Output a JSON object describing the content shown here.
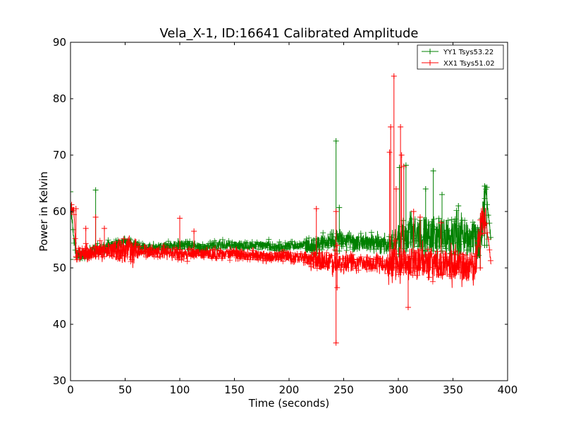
{
  "chart_data": {
    "type": "line",
    "title": "Vela_X-1, ID:16641 Calibrated Amplitude",
    "xlabel": "Time (seconds)",
    "ylabel": "Power in Kelvin",
    "xlim": [
      0,
      400
    ],
    "ylim": [
      30,
      90
    ],
    "xticks": [
      0,
      50,
      100,
      150,
      200,
      250,
      300,
      350,
      400
    ],
    "yticks": [
      30,
      40,
      50,
      60,
      70,
      80,
      90
    ],
    "grid": false,
    "legend_position": "top-right",
    "series": [
      {
        "name": "YY1 Tsys53.22",
        "color": "#008000",
        "x": [
          0,
          5,
          10,
          20,
          30,
          40,
          50,
          60,
          70,
          80,
          90,
          100,
          110,
          120,
          130,
          140,
          150,
          160,
          170,
          180,
          190,
          200,
          210,
          220,
          230,
          240,
          250,
          260,
          270,
          280,
          290,
          300,
          310,
          320,
          330,
          340,
          350,
          360,
          370,
          375,
          380,
          385
        ],
        "values": [
          61,
          52,
          52,
          53,
          53.5,
          54,
          54.5,
          54,
          53.5,
          53.5,
          54,
          54,
          54,
          53.5,
          54,
          54,
          54,
          54,
          54,
          54,
          53.5,
          54,
          54,
          54,
          54.5,
          55,
          55,
          54.5,
          54.5,
          54.5,
          54,
          55,
          56,
          56,
          56,
          55.5,
          55.5,
          55.5,
          55,
          54.5,
          64,
          54.5
        ],
        "spikes": [
          {
            "x": 0,
            "values": [
              51.5,
              63.5
            ]
          },
          {
            "x": 23,
            "values": [
              52,
              63.8
            ]
          },
          {
            "x": 243,
            "values": [
              53,
              72.5
            ]
          },
          {
            "x": 246,
            "values": [
              53,
              60.7
            ]
          },
          {
            "x": 301,
            "values": [
              53,
              67.8
            ]
          },
          {
            "x": 307,
            "values": [
              53,
              68.2
            ]
          },
          {
            "x": 332,
            "values": [
              53,
              67.2
            ]
          },
          {
            "x": 325,
            "values": [
              53,
              64
            ]
          },
          {
            "x": 340,
            "values": [
              53,
              63
            ]
          },
          {
            "x": 355,
            "values": [
              53,
              61
            ]
          },
          {
            "x": 379,
            "values": [
              54,
              64.5
            ]
          },
          {
            "x": 381,
            "values": [
              54,
              64.3
            ]
          }
        ],
        "noise": [
          {
            "from": 0,
            "to": 150,
            "amp": 0.8
          },
          {
            "from": 150,
            "to": 215,
            "amp": 0.7
          },
          {
            "from": 215,
            "to": 290,
            "amp": 1.3
          },
          {
            "from": 290,
            "to": 300,
            "amp": 1.5
          },
          {
            "from": 300,
            "to": 380,
            "amp": 3.2
          },
          {
            "from": 380,
            "to": 390,
            "amp": 0.5
          }
        ]
      },
      {
        "name": "XX1 Tsys51.02",
        "color": "#ff0000",
        "x": [
          0,
          3,
          5,
          10,
          20,
          30,
          40,
          50,
          60,
          70,
          80,
          90,
          100,
          110,
          120,
          130,
          140,
          150,
          160,
          170,
          180,
          190,
          200,
          210,
          220,
          230,
          240,
          250,
          260,
          270,
          280,
          290,
          300,
          310,
          320,
          330,
          340,
          350,
          360,
          370,
          375,
          380,
          385
        ],
        "values": [
          60.5,
          60.5,
          52.5,
          52.5,
          52.8,
          53,
          53,
          53,
          53,
          52.8,
          52.8,
          52.5,
          52.5,
          52.5,
          52.5,
          52.5,
          52.5,
          52.5,
          52.3,
          52.2,
          52,
          52,
          52,
          51.8,
          51.5,
          51.2,
          51,
          50.8,
          50.8,
          50.8,
          50.8,
          50.8,
          51,
          51,
          51,
          50.8,
          50.5,
          50.5,
          50.3,
          50.3,
          58,
          58.5,
          50.5
        ],
        "spikes": [
          {
            "x": 1,
            "values": [
              60,
              61.2
            ]
          },
          {
            "x": 5,
            "values": [
              52,
              60.5
            ]
          },
          {
            "x": 14,
            "values": [
              52,
              57
            ]
          },
          {
            "x": 23,
            "values": [
              52,
              59
            ]
          },
          {
            "x": 31,
            "values": [
              52,
              57
            ]
          },
          {
            "x": 100,
            "values": [
              52,
              58.8
            ]
          },
          {
            "x": 113,
            "values": [
              52,
              56.5
            ]
          },
          {
            "x": 225,
            "values": [
              51,
              60.5
            ]
          },
          {
            "x": 243,
            "values": [
              36.7,
              60
            ]
          },
          {
            "x": 244,
            "values": [
              46.5,
              54
            ]
          },
          {
            "x": 292,
            "values": [
              50,
              70.5
            ]
          },
          {
            "x": 293,
            "values": [
              50,
              75
            ]
          },
          {
            "x": 296,
            "values": [
              50,
              84
            ]
          },
          {
            "x": 298,
            "values": [
              50,
              64
            ]
          },
          {
            "x": 302,
            "values": [
              50,
              75
            ]
          },
          {
            "x": 303,
            "values": [
              50,
              70
            ]
          },
          {
            "x": 305,
            "values": [
              50,
              68
            ]
          },
          {
            "x": 309,
            "values": [
              43,
              52
            ]
          },
          {
            "x": 314,
            "values": [
              50,
              60
            ]
          },
          {
            "x": 320,
            "values": [
              50,
              59
            ]
          },
          {
            "x": 339,
            "values": [
              49,
              58
            ]
          },
          {
            "x": 375,
            "values": [
              50,
              58.5
            ]
          }
        ],
        "noise": [
          {
            "from": 0,
            "to": 5,
            "amp": 0.5
          },
          {
            "from": 5,
            "to": 40,
            "amp": 1.2
          },
          {
            "from": 40,
            "to": 60,
            "amp": 2.2
          },
          {
            "from": 60,
            "to": 220,
            "amp": 0.9
          },
          {
            "from": 220,
            "to": 260,
            "amp": 1.6
          },
          {
            "from": 260,
            "to": 290,
            "amp": 1.2
          },
          {
            "from": 290,
            "to": 380,
            "amp": 2.5
          },
          {
            "from": 380,
            "to": 390,
            "amp": 0.4
          }
        ]
      }
    ]
  }
}
